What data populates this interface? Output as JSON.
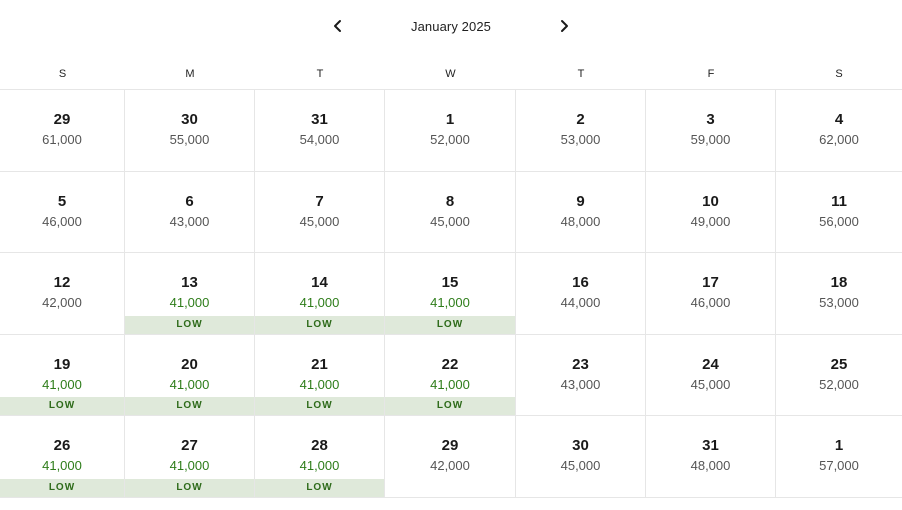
{
  "calendar": {
    "month_label": "January 2025",
    "weekdays": [
      "S",
      "M",
      "T",
      "W",
      "T",
      "F",
      "S"
    ],
    "low_label": "LOW",
    "colors": {
      "low_price_text": "#2e7d1a",
      "low_badge_bg": "#dfe9da",
      "grid_line": "#e6e6e6"
    },
    "weeks": [
      [
        {
          "day": "29",
          "price": "61,000",
          "low": false
        },
        {
          "day": "30",
          "price": "55,000",
          "low": false
        },
        {
          "day": "31",
          "price": "54,000",
          "low": false
        },
        {
          "day": "1",
          "price": "52,000",
          "low": false
        },
        {
          "day": "2",
          "price": "53,000",
          "low": false
        },
        {
          "day": "3",
          "price": "59,000",
          "low": false
        },
        {
          "day": "4",
          "price": "62,000",
          "low": false
        }
      ],
      [
        {
          "day": "5",
          "price": "46,000",
          "low": false
        },
        {
          "day": "6",
          "price": "43,000",
          "low": false
        },
        {
          "day": "7",
          "price": "45,000",
          "low": false
        },
        {
          "day": "8",
          "price": "45,000",
          "low": false
        },
        {
          "day": "9",
          "price": "48,000",
          "low": false
        },
        {
          "day": "10",
          "price": "49,000",
          "low": false
        },
        {
          "day": "11",
          "price": "56,000",
          "low": false
        }
      ],
      [
        {
          "day": "12",
          "price": "42,000",
          "low": false
        },
        {
          "day": "13",
          "price": "41,000",
          "low": true
        },
        {
          "day": "14",
          "price": "41,000",
          "low": true
        },
        {
          "day": "15",
          "price": "41,000",
          "low": true
        },
        {
          "day": "16",
          "price": "44,000",
          "low": false
        },
        {
          "day": "17",
          "price": "46,000",
          "low": false
        },
        {
          "day": "18",
          "price": "53,000",
          "low": false
        }
      ],
      [
        {
          "day": "19",
          "price": "41,000",
          "low": true
        },
        {
          "day": "20",
          "price": "41,000",
          "low": true
        },
        {
          "day": "21",
          "price": "41,000",
          "low": true
        },
        {
          "day": "22",
          "price": "41,000",
          "low": true
        },
        {
          "day": "23",
          "price": "43,000",
          "low": false
        },
        {
          "day": "24",
          "price": "45,000",
          "low": false
        },
        {
          "day": "25",
          "price": "52,000",
          "low": false
        }
      ],
      [
        {
          "day": "26",
          "price": "41,000",
          "low": true
        },
        {
          "day": "27",
          "price": "41,000",
          "low": true
        },
        {
          "day": "28",
          "price": "41,000",
          "low": true
        },
        {
          "day": "29",
          "price": "42,000",
          "low": false
        },
        {
          "day": "30",
          "price": "45,000",
          "low": false
        },
        {
          "day": "31",
          "price": "48,000",
          "low": false
        },
        {
          "day": "1",
          "price": "57,000",
          "low": false
        }
      ]
    ]
  }
}
